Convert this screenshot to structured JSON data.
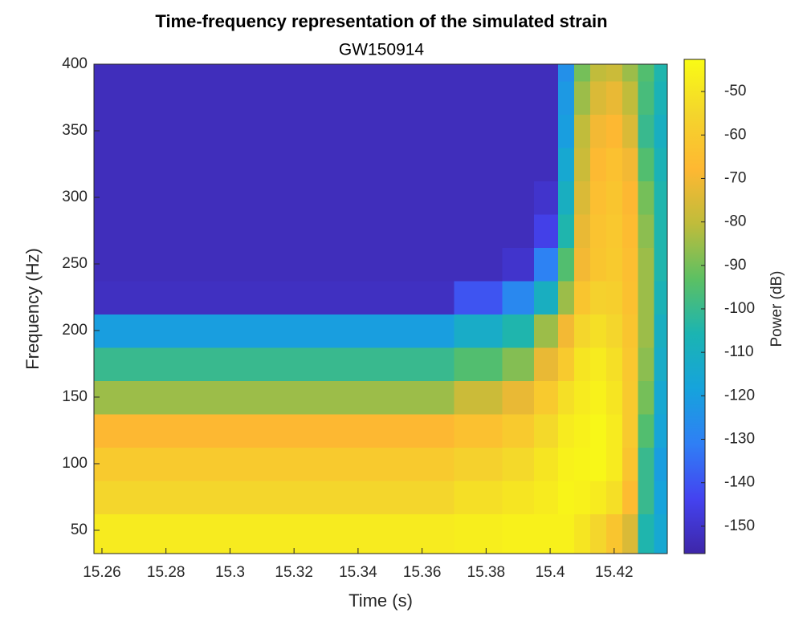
{
  "chart_data": {
    "type": "heatmap",
    "title": "Time-frequency representation of the simulated strain",
    "subtitle": "GW150914",
    "xlabel": "Time (s)",
    "ylabel": "Frequency (Hz)",
    "colorbar_label": "Power (dB)",
    "x": [
      15.26,
      15.28,
      15.3,
      15.32,
      15.34,
      15.36,
      15.38,
      15.39,
      15.4,
      15.405,
      15.41,
      15.415,
      15.42,
      15.425,
      15.43,
      15.435
    ],
    "y": [
      50,
      75,
      100,
      125,
      150,
      175,
      200,
      225,
      250,
      275,
      300,
      325,
      350,
      375,
      400
    ],
    "values": [
      [
        -48,
        -48,
        -48,
        -48,
        -48,
        -48,
        -47,
        -46,
        -46,
        -46,
        -50,
        -55,
        -62,
        -75,
        -105,
        -115
      ],
      [
        -55,
        -55,
        -55,
        -55,
        -55,
        -55,
        -52,
        -50,
        -48,
        -45,
        -46,
        -48,
        -52,
        -66,
        -100,
        -118
      ],
      [
        -60,
        -60,
        -60,
        -60,
        -60,
        -60,
        -57,
        -54,
        -50,
        -46,
        -45,
        -44,
        -48,
        -62,
        -100,
        -120
      ],
      [
        -68,
        -68,
        -68,
        -68,
        -68,
        -68,
        -64,
        -60,
        -54,
        -48,
        -46,
        -44,
        -48,
        -60,
        -95,
        -117
      ],
      [
        -85,
        -85,
        -85,
        -85,
        -85,
        -85,
        -78,
        -72,
        -60,
        -52,
        -48,
        -46,
        -50,
        -60,
        -90,
        -115
      ],
      [
        -100,
        -100,
        -100,
        -100,
        -100,
        -100,
        -95,
        -88,
        -72,
        -60,
        -50,
        -48,
        -52,
        -61,
        -87,
        -112
      ],
      [
        -120,
        -120,
        -120,
        -120,
        -120,
        -120,
        -112,
        -105,
        -85,
        -70,
        -55,
        -52,
        -55,
        -62,
        -85,
        -110
      ],
      [
        -152,
        -152,
        -152,
        -152,
        -152,
        -152,
        -140,
        -128,
        -110,
        -85,
        -62,
        -57,
        -58,
        -64,
        -85,
        -107
      ],
      [
        -153,
        -153,
        -153,
        -153,
        -153,
        -153,
        -153,
        -150,
        -130,
        -95,
        -70,
        -62,
        -60,
        -65,
        -85,
        -105
      ],
      [
        -153,
        -153,
        -153,
        -153,
        -153,
        -153,
        -153,
        -153,
        -145,
        -105,
        -72,
        -63,
        -61,
        -66,
        -87,
        -105
      ],
      [
        -153,
        -153,
        -153,
        -153,
        -153,
        -153,
        -153,
        -153,
        -150,
        -110,
        -75,
        -65,
        -62,
        -68,
        -90,
        -105
      ],
      [
        -153,
        -153,
        -153,
        -153,
        -153,
        -153,
        -153,
        -153,
        -153,
        -115,
        -78,
        -67,
        -64,
        -70,
        -95,
        -107
      ],
      [
        -153,
        -153,
        -153,
        -153,
        -153,
        -153,
        -153,
        -153,
        -153,
        -120,
        -80,
        -70,
        -68,
        -75,
        -100,
        -110
      ],
      [
        -153,
        -153,
        -153,
        -153,
        -153,
        -153,
        -153,
        -153,
        -153,
        -122,
        -85,
        -75,
        -72,
        -80,
        -97,
        -107
      ],
      [
        -153,
        -153,
        -153,
        -153,
        -153,
        -153,
        -153,
        -153,
        -153,
        -125,
        -90,
        -80,
        -78,
        -85,
        -95,
        -105
      ]
    ],
    "xlim": [
      15.2575,
      15.4366
    ],
    "xticks": [
      15.26,
      15.28,
      15.3,
      15.32,
      15.34,
      15.36,
      15.38,
      15.4,
      15.42
    ],
    "ylim": [
      32.5,
      400
    ],
    "yticks": [
      50,
      100,
      150,
      200,
      250,
      300,
      350,
      400
    ],
    "clim": [
      -156.3,
      -42.6
    ],
    "cticks": [
      -50,
      -60,
      -70,
      -80,
      -90,
      -100,
      -110,
      -120,
      -130,
      -140,
      -150
    ],
    "colormap": [
      "#3e26a8",
      "#4443f0",
      "#2f7ff5",
      "#16a3dc",
      "#1bb4b2",
      "#5cc063",
      "#bfbc3b",
      "#feb832",
      "#f4d52c",
      "#f9fb15"
    ]
  }
}
